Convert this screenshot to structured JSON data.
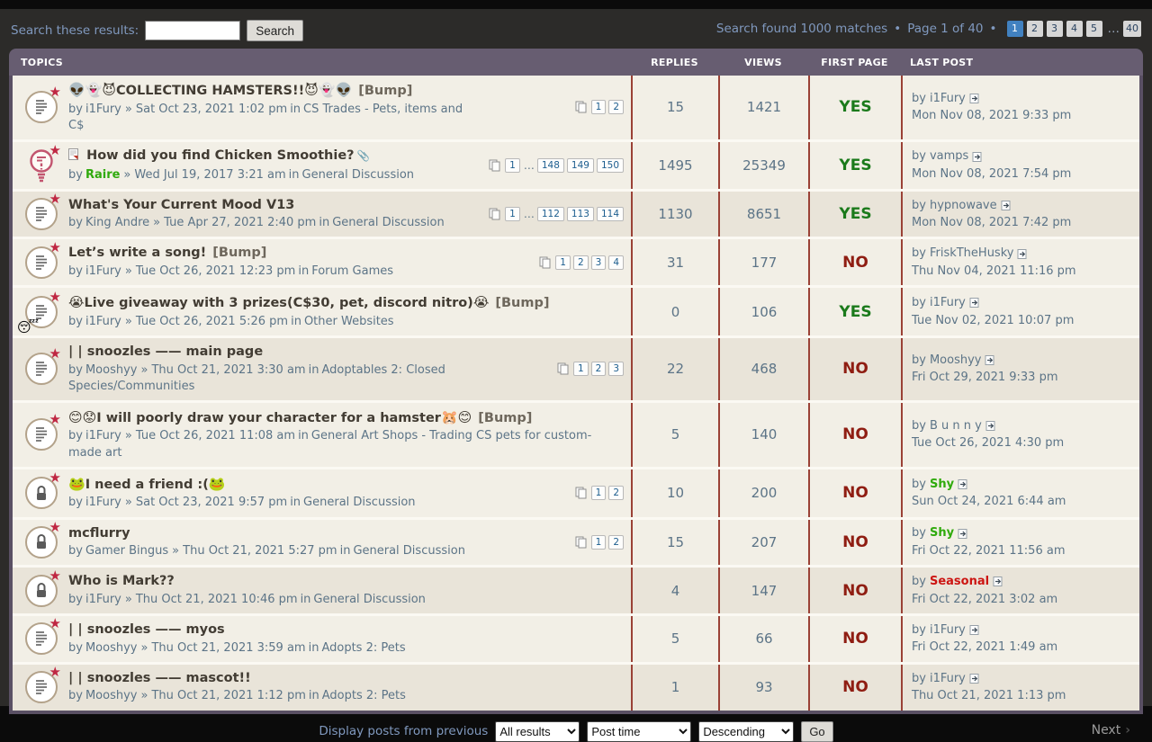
{
  "topbar": {
    "search_label": "Search these results:",
    "search_value": "",
    "search_button": "Search",
    "results_info": "Search found 1000 matches",
    "bullet": "•",
    "page_info": "Page 1 of 40",
    "pages": [
      {
        "label": "1",
        "active": true
      },
      {
        "label": "2"
      },
      {
        "label": "3"
      },
      {
        "label": "4"
      },
      {
        "label": "5"
      },
      {
        "label": "…",
        "ellipsis": true
      },
      {
        "label": "40"
      }
    ]
  },
  "table": {
    "headers": {
      "topics": "TOPICS",
      "replies": "REPLIES",
      "views": "VIEWS",
      "first_page": "FIRST PAGE",
      "last_post": "LAST POST"
    }
  },
  "rows": [
    {
      "icon": "doc",
      "title_prefix_icon": false,
      "title_emoji_before": "👽👻😈",
      "title": "COLLECTING HAMSTERS!!",
      "title_emoji_after": "😈👻👽",
      "attachment": false,
      "bump": "[Bump]",
      "by": "by",
      "author": "i1Fury",
      "author_style": "normal",
      "sep": "»",
      "date": "Sat Oct 23, 2021 1:02 pm",
      "in_word": "in",
      "forum": "CS Trades - Pets, items and C$",
      "pages": [
        "1",
        "2"
      ],
      "replies": "15",
      "views": "1421",
      "first_page": "YES",
      "last_author": "i1Fury",
      "last_author_style": "normal",
      "last_date": "Mon Nov 08, 2021 9:33 pm",
      "shade": "light"
    },
    {
      "icon": "bulb",
      "title_prefix_icon": true,
      "title_emoji_before": "",
      "title": "How did you find Chicken Smoothie?",
      "title_emoji_after": "",
      "attachment": true,
      "bump": "",
      "by": "by",
      "author": "Raire",
      "author_style": "green",
      "sep": "»",
      "date": "Wed Jul 19, 2017 3:21 am",
      "in_word": "in",
      "forum": "General Discussion",
      "pages": [
        "1",
        "…",
        "148",
        "149",
        "150"
      ],
      "replies": "1495",
      "views": "25349",
      "first_page": "YES",
      "last_author": "vamps",
      "last_author_style": "normal",
      "last_date": "Mon Nov 08, 2021 7:54 pm",
      "shade": "light"
    },
    {
      "icon": "doc",
      "title_prefix_icon": false,
      "title_emoji_before": "",
      "title": "What's Your Current Mood V13",
      "title_emoji_after": "",
      "attachment": false,
      "bump": "",
      "by": "by",
      "author": "King Andre",
      "author_style": "normal",
      "sep": "»",
      "date": "Tue Apr 27, 2021 2:40 pm",
      "in_word": "in",
      "forum": "General Discussion",
      "pages": [
        "1",
        "…",
        "112",
        "113",
        "114"
      ],
      "replies": "1130",
      "views": "8651",
      "first_page": "YES",
      "last_author": "hypnowave",
      "last_author_style": "normal",
      "last_date": "Mon Nov 08, 2021 7:42 pm",
      "shade": "dark"
    },
    {
      "icon": "doc",
      "title_prefix_icon": false,
      "title_emoji_before": "",
      "title": "Let’s write a song!",
      "title_emoji_after": "",
      "attachment": false,
      "bump": "[Bump]",
      "by": "by",
      "author": "i1Fury",
      "author_style": "normal",
      "sep": "»",
      "date": "Tue Oct 26, 2021 12:23 pm",
      "in_word": "in",
      "forum": "Forum Games",
      "pages": [
        "1",
        "2",
        "3",
        "4"
      ],
      "replies": "31",
      "views": "177",
      "first_page": "NO",
      "last_author": "FriskTheHusky",
      "last_author_style": "normal",
      "last_date": "Thu Nov 04, 2021 11:16 pm",
      "shade": "light"
    },
    {
      "icon": "doc-smiley",
      "title_prefix_icon": false,
      "title_emoji_before": "😭",
      "title": "Live giveaway with 3 prizes(C$30, pet, discord nitro)",
      "title_emoji_after": "😭",
      "attachment": false,
      "bump": "[Bump]",
      "by": "by",
      "author": "i1Fury",
      "author_style": "normal",
      "sep": "»",
      "date": "Tue Oct 26, 2021 5:26 pm",
      "in_word": "in",
      "forum": "Other Websites",
      "pages": [],
      "replies": "0",
      "views": "106",
      "first_page": "YES",
      "last_author": "i1Fury",
      "last_author_style": "normal",
      "last_date": "Tue Nov 02, 2021 10:07 pm",
      "shade": "light"
    },
    {
      "icon": "doc",
      "title_prefix_icon": false,
      "title_emoji_before": "",
      "title": "| | snoozles —— main page",
      "title_emoji_after": "",
      "attachment": false,
      "bump": "",
      "by": "by",
      "author": "Mooshyy",
      "author_style": "normal",
      "sep": "»",
      "date": "Thu Oct 21, 2021 3:30 am",
      "in_word": "in",
      "forum": "Adoptables 2: Closed Species/Communities",
      "pages": [
        "1",
        "2",
        "3"
      ],
      "replies": "22",
      "views": "468",
      "first_page": "NO",
      "last_author": "Mooshyy",
      "last_author_style": "normal",
      "last_date": "Fri Oct 29, 2021 9:33 pm",
      "shade": "dark"
    },
    {
      "icon": "doc",
      "title_prefix_icon": false,
      "title_emoji_before": "😊😟",
      "title": "I will poorly draw your character for a hamster",
      "title_emoji_after": "🐹😊",
      "attachment": false,
      "bump": "[Bump]",
      "by": "by",
      "author": "i1Fury",
      "author_style": "normal",
      "sep": "»",
      "date": "Tue Oct 26, 2021 11:08 am",
      "in_word": "in",
      "forum": "General Art Shops - Trading CS pets for custom-made art",
      "pages": [],
      "replies": "5",
      "views": "140",
      "first_page": "NO",
      "last_author": "B u n n y",
      "last_author_style": "normal",
      "last_date": "Tue Oct 26, 2021 4:30 pm",
      "shade": "light"
    },
    {
      "icon": "lock",
      "title_prefix_icon": false,
      "title_emoji_before": "🐸",
      "title": "I need a friend :(",
      "title_emoji_after": "🐸",
      "attachment": false,
      "bump": "",
      "by": "by",
      "author": "i1Fury",
      "author_style": "normal",
      "sep": "»",
      "date": "Sat Oct 23, 2021 9:57 pm",
      "in_word": "in",
      "forum": "General Discussion",
      "pages": [
        "1",
        "2"
      ],
      "replies": "10",
      "views": "200",
      "first_page": "NO",
      "last_author": "Shy",
      "last_author_style": "green",
      "last_date": "Sun Oct 24, 2021 6:44 am",
      "shade": "light"
    },
    {
      "icon": "lock",
      "title_prefix_icon": false,
      "title_emoji_before": "",
      "title": "mcflurry",
      "title_emoji_after": "",
      "attachment": false,
      "bump": "",
      "by": "by",
      "author": "Gamer Bingus",
      "author_style": "normal",
      "sep": "»",
      "date": "Thu Oct 21, 2021 5:27 pm",
      "in_word": "in",
      "forum": "General Discussion",
      "pages": [
        "1",
        "2"
      ],
      "replies": "15",
      "views": "207",
      "first_page": "NO",
      "last_author": "Shy",
      "last_author_style": "green",
      "last_date": "Fri Oct 22, 2021 11:56 am",
      "shade": "light"
    },
    {
      "icon": "lock",
      "title_prefix_icon": false,
      "title_emoji_before": "",
      "title": "Who is Mark??",
      "title_emoji_after": "",
      "attachment": false,
      "bump": "",
      "by": "by",
      "author": "i1Fury",
      "author_style": "normal",
      "sep": "»",
      "date": "Thu Oct 21, 2021 10:46 pm",
      "in_word": "in",
      "forum": "General Discussion",
      "pages": [],
      "replies": "4",
      "views": "147",
      "first_page": "NO",
      "last_author": "Seasonal",
      "last_author_style": "red",
      "last_date": "Fri Oct 22, 2021 3:02 am",
      "shade": "dark"
    },
    {
      "icon": "doc",
      "title_prefix_icon": false,
      "title_emoji_before": "",
      "title": "| | snoozles —— myos",
      "title_emoji_after": "",
      "attachment": false,
      "bump": "",
      "by": "by",
      "author": "Mooshyy",
      "author_style": "normal",
      "sep": "»",
      "date": "Thu Oct 21, 2021 3:59 am",
      "in_word": "in",
      "forum": "Adopts 2: Pets",
      "pages": [],
      "replies": "5",
      "views": "66",
      "first_page": "NO",
      "last_author": "i1Fury",
      "last_author_style": "normal",
      "last_date": "Fri Oct 22, 2021 1:49 am",
      "shade": "light"
    },
    {
      "icon": "doc",
      "title_prefix_icon": false,
      "title_emoji_before": "",
      "title": "| | snoozles —— mascot!!",
      "title_emoji_after": "",
      "attachment": false,
      "bump": "",
      "by": "by",
      "author": "Mooshyy",
      "author_style": "normal",
      "sep": "»",
      "date": "Thu Oct 21, 2021 1:12 pm",
      "in_word": "in",
      "forum": "Adopts 2: Pets",
      "pages": [],
      "replies": "1",
      "views": "93",
      "first_page": "NO",
      "last_author": "i1Fury",
      "last_author_style": "normal",
      "last_date": "Thu Oct 21, 2021 1:13 pm",
      "shade": "dark"
    }
  ],
  "footer": {
    "display_label": "Display posts from previous",
    "selects": [
      "All results",
      "Post time",
      "Descending"
    ],
    "go_button": "Go",
    "next_label": "Next",
    "next_chevron": "›"
  },
  "colors": {
    "header_bg": "#675d71",
    "panel_frame": "#5a5064",
    "row_light": "#f2efe6",
    "row_dark": "#e9e4d9",
    "separator": "#9a4136",
    "yes_green": "#1b7a1b",
    "no_red": "#8f1d12",
    "meta_blue": "#5c7487",
    "title_text": "#423c33",
    "topbar_text": "#8099bf",
    "active_page_bg": "#4181c0",
    "green_author": "#2faa0c",
    "red_author": "#cc1512"
  }
}
